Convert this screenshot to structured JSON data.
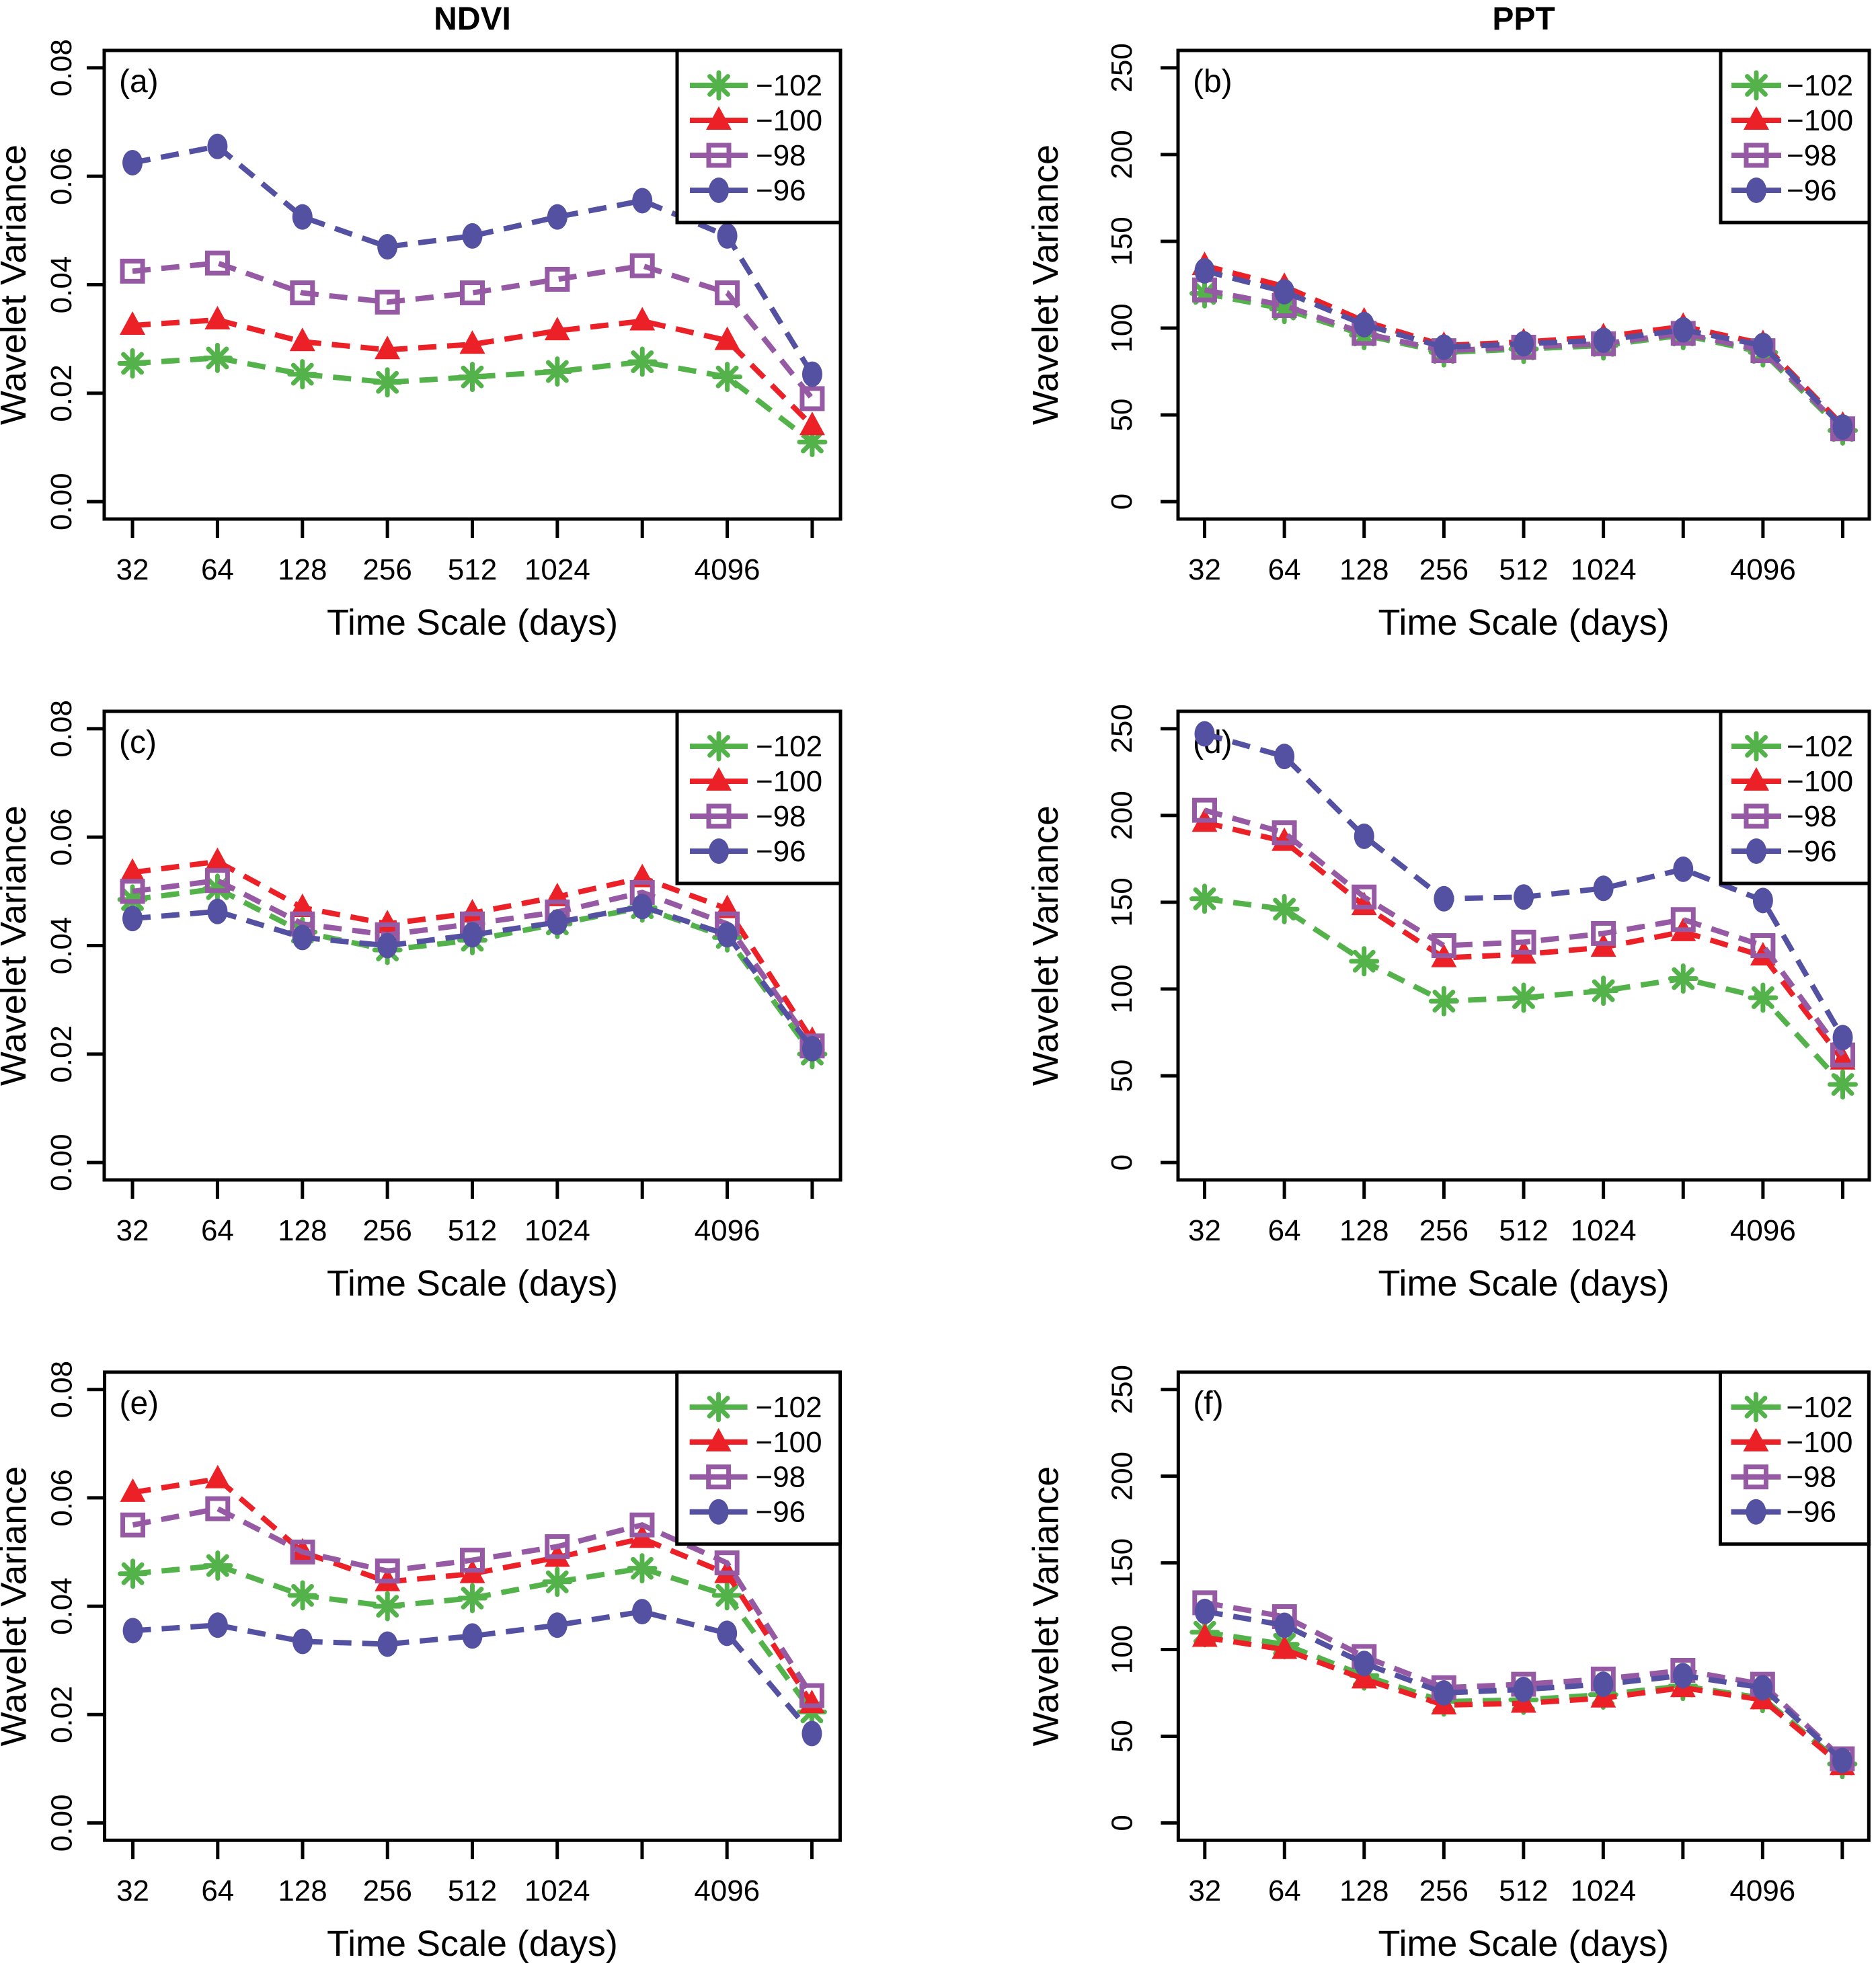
{
  "figure": {
    "column_titles": [
      "NDVI",
      "PPT"
    ],
    "xlabel": "Time Scale (days)",
    "ylabel": "Wavelet Variance",
    "x_tick_labels": [
      "32",
      "64",
      "128",
      "256",
      "512",
      "1024",
      "",
      "4096",
      ""
    ],
    "colors": {
      "green": "#53B34A",
      "red": "#EB2127",
      "purple": "#9659A3",
      "blue": "#5551A2",
      "axis": "#000000",
      "background": "#FFFFFF"
    },
    "legend": [
      {
        "label": "−102",
        "marker": "asterisk-marker",
        "color": "#53B34A"
      },
      {
        "label": "−100",
        "marker": "triangle-marker",
        "color": "#EB2127"
      },
      {
        "label": "−98",
        "marker": "square-marker",
        "color": "#9659A3"
      },
      {
        "label": "−96",
        "marker": "circle-marker",
        "color": "#5551A2"
      }
    ],
    "legend_position": "top-right"
  },
  "chart_data": [
    {
      "type": "line",
      "panel_label": "(a)",
      "column": "NDVI",
      "title": "NDVI",
      "xlabel": "Time Scale (days)",
      "ylabel": "Wavelet Variance",
      "x": [
        32,
        64,
        128,
        256,
        512,
        1024,
        2048,
        4096,
        8192
      ],
      "x_scale": "log2",
      "ylim": [
        0,
        0.08
      ],
      "yticks": [
        0,
        0.02,
        0.04,
        0.06,
        0.08
      ],
      "ytick_labels": [
        "0.00",
        "0.02",
        "0.04",
        "0.06",
        "0.08"
      ],
      "grid": false,
      "series": [
        {
          "name": "−102",
          "marker": "asterisk",
          "color": "#53B34A",
          "values": [
            0.0255,
            0.0265,
            0.0235,
            0.022,
            0.023,
            0.024,
            0.0258,
            0.023,
            0.011
          ]
        },
        {
          "name": "−100",
          "marker": "triangle",
          "color": "#EB2127",
          "values": [
            0.0325,
            0.0335,
            0.0295,
            0.028,
            0.029,
            0.0315,
            0.0333,
            0.0297,
            0.014
          ]
        },
        {
          "name": "−98",
          "marker": "square",
          "color": "#9659A3",
          "values": [
            0.0425,
            0.044,
            0.0385,
            0.0368,
            0.0385,
            0.041,
            0.0435,
            0.0385,
            0.019
          ]
        },
        {
          "name": "−96",
          "marker": "circle",
          "color": "#5551A2",
          "values": [
            0.0625,
            0.0655,
            0.0525,
            0.047,
            0.049,
            0.0525,
            0.0555,
            0.049,
            0.0235
          ]
        }
      ]
    },
    {
      "type": "line",
      "panel_label": "(b)",
      "column": "PPT",
      "title": "PPT",
      "xlabel": "Time Scale (days)",
      "ylabel": "Wavelet Variance",
      "x": [
        32,
        64,
        128,
        256,
        512,
        1024,
        2048,
        4096,
        8192
      ],
      "x_scale": "log2",
      "ylim": [
        0,
        250
      ],
      "yticks": [
        0,
        50,
        100,
        150,
        200,
        250
      ],
      "ytick_labels": [
        "0",
        "50",
        "100",
        "150",
        "200",
        "250"
      ],
      "grid": false,
      "series": [
        {
          "name": "−102",
          "marker": "asterisk",
          "color": "#53B34A",
          "values": [
            120,
            111,
            96,
            86,
            88,
            90,
            96,
            86,
            41
          ]
        },
        {
          "name": "−100",
          "marker": "triangle",
          "color": "#EB2127",
          "values": [
            136,
            124,
            104,
            90,
            92,
            95,
            101,
            91,
            44
          ]
        },
        {
          "name": "−98",
          "marker": "square",
          "color": "#9659A3",
          "values": [
            122,
            113,
            97,
            87,
            89,
            91,
            97,
            87,
            42
          ]
        },
        {
          "name": "−96",
          "marker": "circle",
          "color": "#5551A2",
          "values": [
            133,
            121,
            102,
            89,
            91,
            93,
            99,
            90,
            43
          ]
        }
      ]
    },
    {
      "type": "line",
      "panel_label": "(c)",
      "column": "NDVI",
      "title": "",
      "xlabel": "Time Scale (days)",
      "ylabel": "Wavelet Variance",
      "x": [
        32,
        64,
        128,
        256,
        512,
        1024,
        2048,
        4096,
        8192
      ],
      "x_scale": "log2",
      "ylim": [
        0,
        0.08
      ],
      "yticks": [
        0,
        0.02,
        0.04,
        0.06,
        0.08
      ],
      "ytick_labels": [
        "0.00",
        "0.02",
        "0.04",
        "0.06",
        "0.08"
      ],
      "grid": false,
      "series": [
        {
          "name": "−102",
          "marker": "asterisk",
          "color": "#53B34A",
          "values": [
            0.0485,
            0.0505,
            0.0425,
            0.0392,
            0.041,
            0.044,
            0.047,
            0.0415,
            0.02
          ]
        },
        {
          "name": "−100",
          "marker": "triangle",
          "color": "#EB2127",
          "values": [
            0.0535,
            0.0555,
            0.047,
            0.044,
            0.046,
            0.049,
            0.0525,
            0.0468,
            0.0225
          ]
        },
        {
          "name": "−98",
          "marker": "square",
          "color": "#9659A3",
          "values": [
            0.05,
            0.052,
            0.044,
            0.042,
            0.044,
            0.0462,
            0.0498,
            0.044,
            0.0215
          ]
        },
        {
          "name": "−96",
          "marker": "circle",
          "color": "#5551A2",
          "values": [
            0.045,
            0.0463,
            0.0415,
            0.04,
            0.042,
            0.0443,
            0.0472,
            0.042,
            0.021
          ]
        }
      ]
    },
    {
      "type": "line",
      "panel_label": "(d)",
      "column": "PPT",
      "title": "",
      "xlabel": "Time Scale (days)",
      "ylabel": "Wavelet Variance",
      "x": [
        32,
        64,
        128,
        256,
        512,
        1024,
        2048,
        4096,
        8192
      ],
      "x_scale": "log2",
      "ylim": [
        0,
        250
      ],
      "yticks": [
        0,
        50,
        100,
        150,
        200,
        250
      ],
      "ytick_labels": [
        "0",
        "50",
        "100",
        "150",
        "200",
        "250"
      ],
      "grid": false,
      "series": [
        {
          "name": "−102",
          "marker": "asterisk",
          "color": "#53B34A",
          "values": [
            152,
            146,
            116,
            93,
            95,
            99,
            106,
            95,
            45
          ]
        },
        {
          "name": "−100",
          "marker": "triangle",
          "color": "#EB2127",
          "values": [
            196,
            185,
            148,
            118,
            120,
            124,
            133,
            119,
            59
          ]
        },
        {
          "name": "−98",
          "marker": "square",
          "color": "#9659A3",
          "values": [
            203,
            190,
            153,
            125,
            127,
            132,
            140,
            125,
            62
          ]
        },
        {
          "name": "−96",
          "marker": "circle",
          "color": "#5551A2",
          "values": [
            247,
            234,
            188,
            152,
            153,
            158,
            169,
            151,
            72
          ]
        }
      ]
    },
    {
      "type": "line",
      "panel_label": "(e)",
      "column": "NDVI",
      "title": "",
      "xlabel": "Time Scale (days)",
      "ylabel": "Wavelet Variance",
      "x": [
        32,
        64,
        128,
        256,
        512,
        1024,
        2048,
        4096,
        8192
      ],
      "x_scale": "log2",
      "ylim": [
        0,
        0.08
      ],
      "yticks": [
        0,
        0.02,
        0.04,
        0.06,
        0.08
      ],
      "ytick_labels": [
        "0.00",
        "0.02",
        "0.04",
        "0.06",
        "0.08"
      ],
      "grid": false,
      "series": [
        {
          "name": "−102",
          "marker": "asterisk",
          "color": "#53B34A",
          "values": [
            0.046,
            0.0475,
            0.042,
            0.04,
            0.0415,
            0.0445,
            0.047,
            0.042,
            0.0205
          ]
        },
        {
          "name": "−100",
          "marker": "triangle",
          "color": "#EB2127",
          "values": [
            0.061,
            0.0635,
            0.05,
            0.0445,
            0.046,
            0.049,
            0.0525,
            0.046,
            0.022
          ]
        },
        {
          "name": "−98",
          "marker": "square",
          "color": "#9659A3",
          "values": [
            0.055,
            0.058,
            0.05,
            0.0465,
            0.0485,
            0.051,
            0.055,
            0.048,
            0.0235
          ]
        },
        {
          "name": "−96",
          "marker": "circle",
          "color": "#5551A2",
          "values": [
            0.0355,
            0.0365,
            0.0335,
            0.033,
            0.0345,
            0.0365,
            0.039,
            0.035,
            0.0165
          ]
        }
      ]
    },
    {
      "type": "line",
      "panel_label": "(f)",
      "column": "PPT",
      "title": "",
      "xlabel": "Time Scale (days)",
      "ylabel": "Wavelet Variance",
      "x": [
        32,
        64,
        128,
        256,
        512,
        1024,
        2048,
        4096,
        8192
      ],
      "x_scale": "log2",
      "ylim": [
        0,
        250
      ],
      "yticks": [
        0,
        50,
        100,
        150,
        200,
        250
      ],
      "ytick_labels": [
        "0",
        "50",
        "100",
        "150",
        "200",
        "250"
      ],
      "grid": false,
      "series": [
        {
          "name": "−102",
          "marker": "asterisk",
          "color": "#53B34A",
          "values": [
            110,
            103,
            85,
            70,
            71,
            74,
            79,
            72,
            34
          ]
        },
        {
          "name": "−100",
          "marker": "triangle",
          "color": "#EB2127",
          "values": [
            107,
            100,
            83,
            68,
            69,
            72,
            78,
            71,
            33
          ]
        },
        {
          "name": "−98",
          "marker": "square",
          "color": "#9659A3",
          "values": [
            127,
            119,
            96,
            78,
            80,
            83,
            88,
            80,
            37
          ]
        },
        {
          "name": "−96",
          "marker": "circle",
          "color": "#5551A2",
          "values": [
            122,
            114,
            92,
            75,
            77,
            80,
            85,
            78,
            36
          ]
        }
      ]
    }
  ]
}
